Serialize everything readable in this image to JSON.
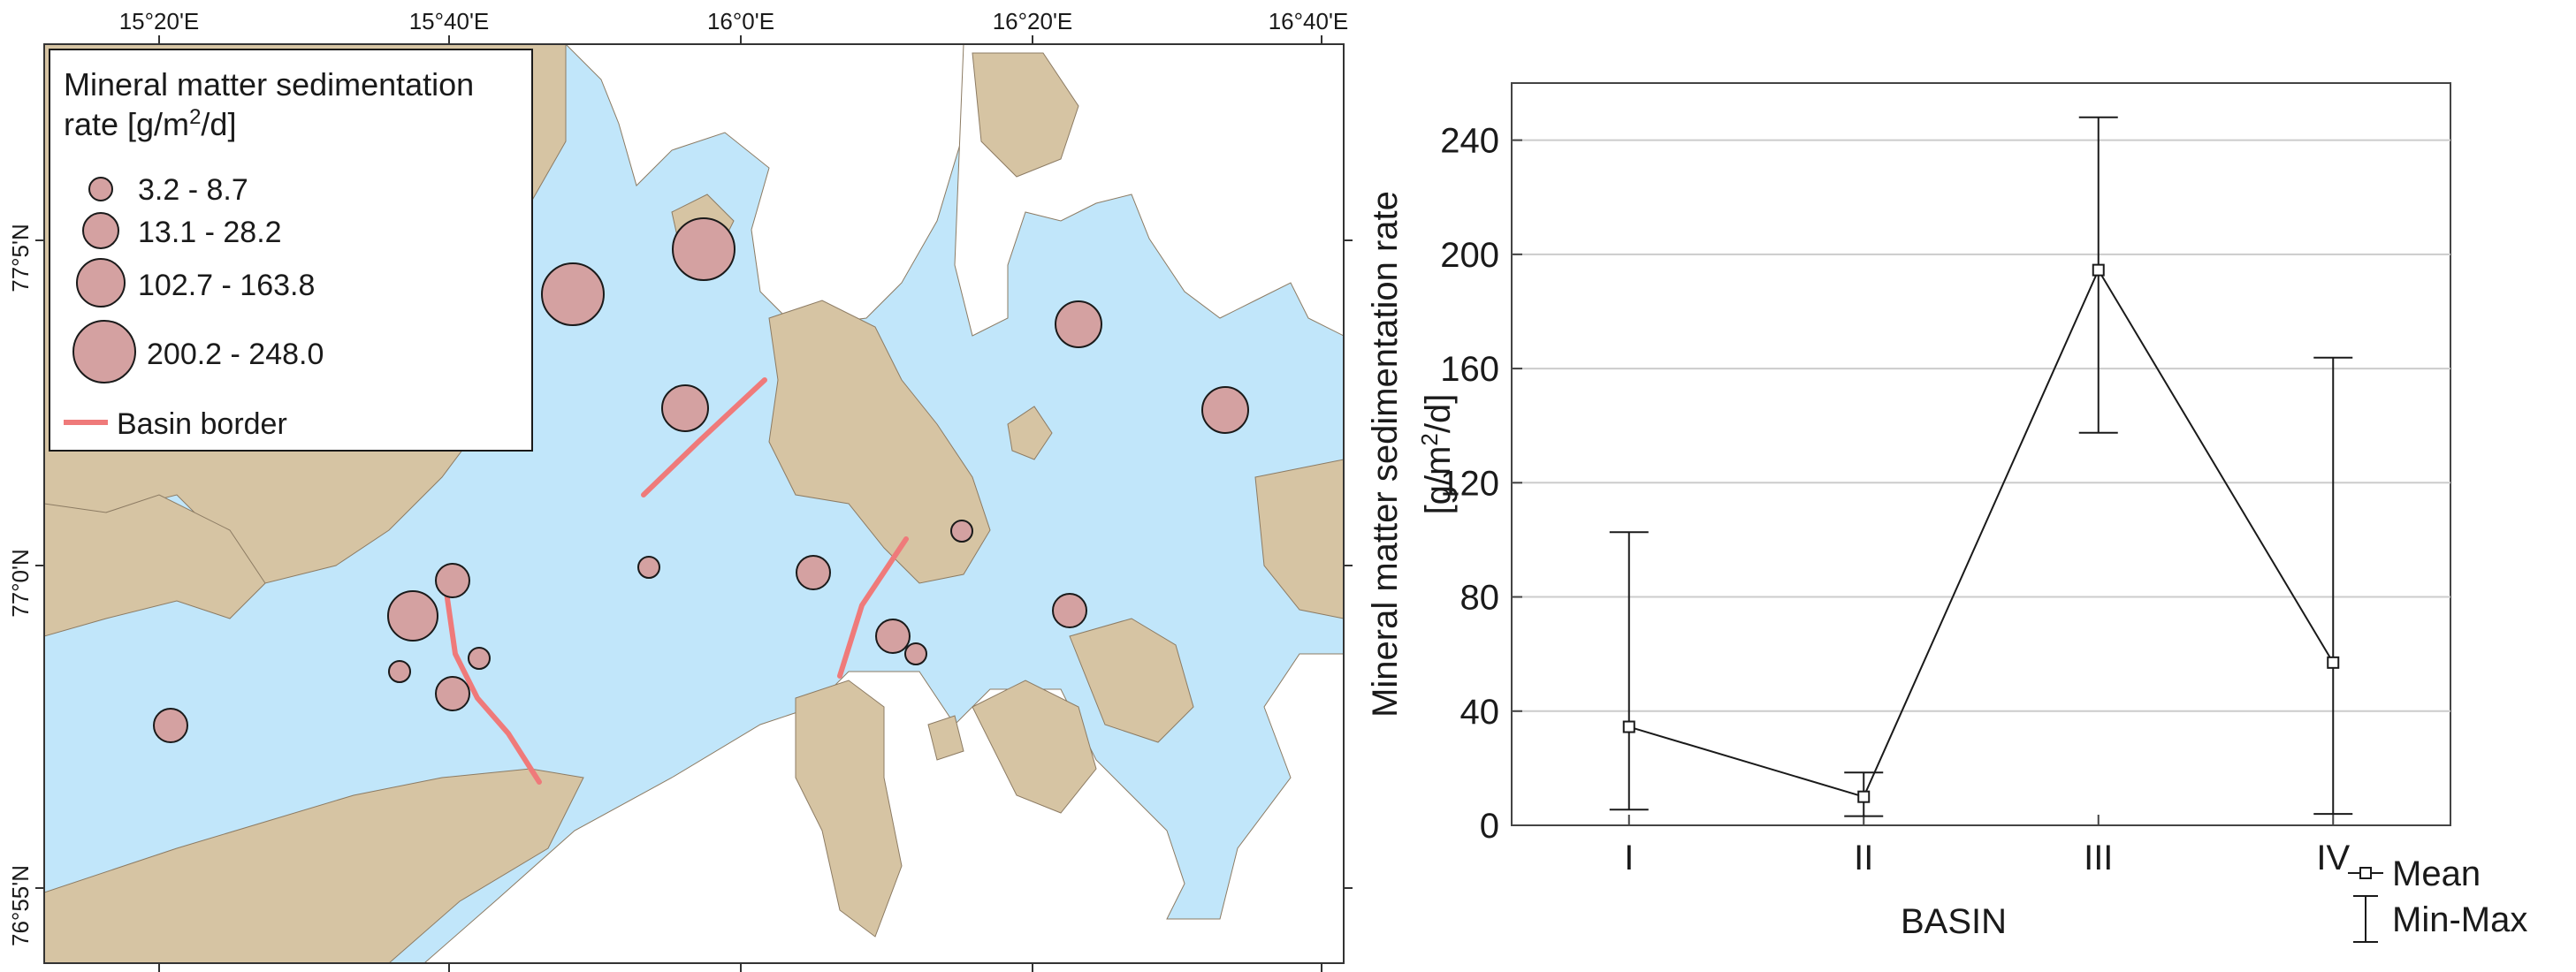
{
  "map": {
    "longitude_labels": [
      "15°20'E",
      "15°40'E",
      "16°0'E",
      "16°20'E",
      "16°40'E"
    ],
    "latitude_labels": [
      "77°5'N",
      "77°0'N",
      "76°55'N"
    ],
    "colors": {
      "sea": "#c1e6fa",
      "land": "#d6c4a3",
      "ice": "#ffffff",
      "point_fill": "#d4a1a1",
      "basin_border": "#ef7a7a"
    },
    "legend": {
      "title_line1": "Mineral matter sedimentation",
      "title_line2_prefix": "rate [g/m",
      "title_line2_sup": "2",
      "title_line2_suffix": "/d]",
      "classes": [
        {
          "label": "3.2 - 8.7"
        },
        {
          "label": "13.1 - 28.2"
        },
        {
          "label": "102.7 - 163.8"
        },
        {
          "label": "200.2 - 248.0"
        }
      ],
      "border_label": "Basin border"
    }
  },
  "chart_data": {
    "type": "line",
    "categories": [
      "I",
      "II",
      "III",
      "IV"
    ],
    "series": [
      {
        "name": "Mean",
        "values": [
          34.5,
          10.0,
          194.5,
          57.0
        ]
      }
    ],
    "error_bars": {
      "name": "Min-Max",
      "min": [
        5.5,
        3.2,
        137.5,
        4.0
      ],
      "max": [
        102.7,
        18.5,
        248.0,
        163.8
      ]
    },
    "xlabel": "BASIN",
    "ylabel_line1": "Mineral matter sedimentation rate",
    "ylabel_line2_prefix": "[g/m",
    "ylabel_line2_sup": "2",
    "ylabel_line2_suffix": "/d]",
    "ylim": [
      0,
      260
    ],
    "yticks": [
      0,
      40,
      80,
      120,
      160,
      200,
      240
    ],
    "grid": "horizontal",
    "legend_placement": "bottom-right"
  }
}
